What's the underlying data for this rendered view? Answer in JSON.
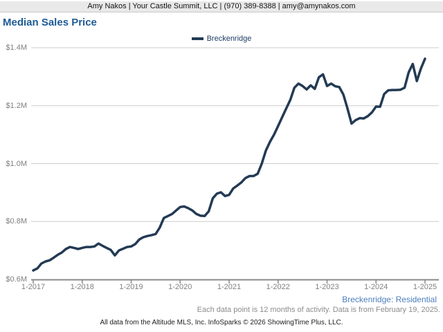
{
  "header": {
    "contact_line": "Amy Nakos | Your Castle Summit, LLC | (970) 389-8388 | amy@amynakos.com"
  },
  "title": "Median Sales Price",
  "legend": {
    "label": "Breckenridge",
    "color": "#233a54"
  },
  "colors": {
    "line": "#233a54",
    "title_blue": "#1e5b94",
    "series_note_blue": "#4a7ebd",
    "gridline": "#cdcdcd",
    "axis": "#888888",
    "tick_label_gray": "#7f7f7f",
    "header_bar_bg": "#e9e9e9"
  },
  "chart_data": {
    "type": "line",
    "title": "Median Sales Price",
    "x_range": [
      "1-2017",
      "1-2025"
    ],
    "x_tick_labels": [
      "1-2017",
      "1-2018",
      "1-2019",
      "1-2020",
      "1-2021",
      "1-2022",
      "1-2023",
      "1-2024",
      "1-2025"
    ],
    "y_tick_labels": [
      "$1.4M",
      "$1.2M",
      "$1.0M",
      "$0.8M",
      "$0.6M"
    ],
    "ylim_musd": [
      0.6,
      1.4
    ],
    "gridlines_musd": [
      0.8,
      1.0,
      1.2,
      1.4
    ],
    "grid": "horizontal",
    "legend_position": "top-center",
    "series": [
      {
        "name": "Breckenridge",
        "color": "#233a54",
        "interval": "monthly",
        "units": "USD millions",
        "start": "1-2017",
        "end": "1-2025",
        "values_musd": [
          0.631,
          0.638,
          0.655,
          0.662,
          0.666,
          0.675,
          0.685,
          0.693,
          0.705,
          0.712,
          0.709,
          0.705,
          0.709,
          0.712,
          0.712,
          0.714,
          0.724,
          0.716,
          0.709,
          0.702,
          0.683,
          0.7,
          0.706,
          0.712,
          0.714,
          0.722,
          0.738,
          0.746,
          0.75,
          0.753,
          0.757,
          0.779,
          0.812,
          0.819,
          0.826,
          0.838,
          0.85,
          0.852,
          0.846,
          0.838,
          0.826,
          0.82,
          0.819,
          0.835,
          0.88,
          0.896,
          0.901,
          0.888,
          0.892,
          0.914,
          0.924,
          0.935,
          0.95,
          0.957,
          0.957,
          0.965,
          1.0,
          1.045,
          1.075,
          1.1,
          1.13,
          1.16,
          1.19,
          1.22,
          1.262,
          1.276,
          1.268,
          1.256,
          1.27,
          1.258,
          1.298,
          1.308,
          1.268,
          1.276,
          1.267,
          1.264,
          1.238,
          1.19,
          1.138,
          1.15,
          1.157,
          1.156,
          1.164,
          1.177,
          1.197,
          1.196,
          1.24,
          1.253,
          1.254,
          1.254,
          1.255,
          1.262,
          1.315,
          1.344,
          1.285,
          1.328,
          1.362
        ]
      }
    ]
  },
  "footnotes": {
    "series_note": "Breckenridge: Residential",
    "data_note": "Each data point is 12 months of activity. Data is from February 19, 2025.",
    "copyright": "All data from the Altitude MLS, Inc. InfoSparks © 2026 ShowingTime Plus, LLC."
  }
}
